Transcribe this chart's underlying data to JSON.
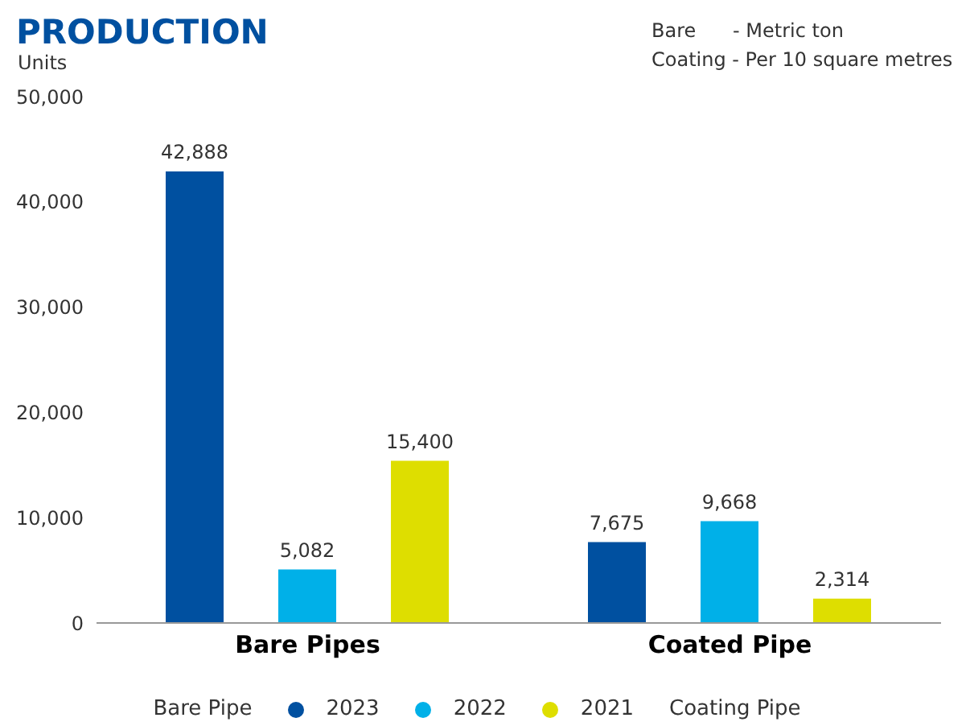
{
  "chart_data": {
    "type": "bar",
    "title": "PRODUCTION",
    "ylabel": "Units",
    "annotations": [
      "Bare      - Metric ton",
      "Coating - Per 10 square metres",
      "Bare Pipe",
      "Coating Pipe"
    ],
    "categories": [
      "Bare Pipes",
      "Coated Pipe"
    ],
    "series": [
      {
        "name": "2023",
        "color": "#0050a0",
        "values": [
          42888,
          7675
        ],
        "value_labels": [
          "42,888",
          "7,675"
        ]
      },
      {
        "name": "2022",
        "color": "#00b0e8",
        "values": [
          5082,
          9668
        ],
        "value_labels": [
          "5,082",
          "9,668"
        ]
      },
      {
        "name": "2021",
        "color": "#dede00",
        "values": [
          15400,
          2314
        ],
        "value_labels": [
          "15,400",
          "2,314"
        ]
      }
    ],
    "ylim": [
      0,
      50000
    ],
    "yticks": [
      0,
      {
        "value": 10000,
        "label": "10,000"
      },
      {
        "value": 20000,
        "label": "20,000"
      },
      {
        "value": 30000,
        "label": "30,000"
      },
      {
        "value": 40000,
        "label": "40,000"
      },
      {
        "value": 50000,
        "label": "50,000"
      }
    ],
    "grid": false,
    "legend": "bottom"
  }
}
